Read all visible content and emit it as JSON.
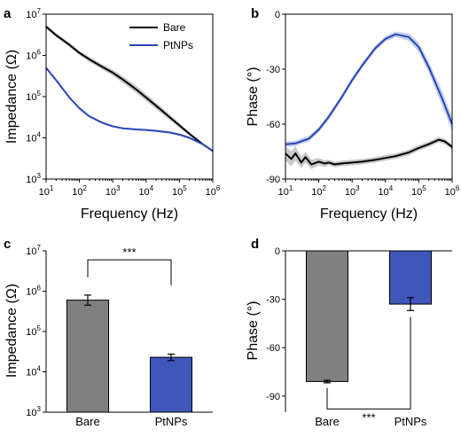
{
  "chart_data": [
    {
      "panel": "a",
      "type": "line",
      "xlabel": "Frequency (Hz)",
      "ylabel": "Impedance (Ω)",
      "xscale": "log",
      "yscale": "log",
      "xlim": [
        10,
        1000000
      ],
      "ylim": [
        1000,
        10000000
      ],
      "xticks": [
        10,
        100,
        1000,
        10000,
        100000,
        1000000
      ],
      "yticks": [
        1000,
        10000,
        100000,
        1000000,
        10000000
      ],
      "legend": "top-right",
      "series": [
        {
          "name": "Bare",
          "color": "#000000",
          "band_color": "#b5b5b5",
          "x": [
            10,
            20,
            50,
            100,
            200,
            500,
            1000,
            2000,
            5000,
            10000,
            20000,
            50000,
            100000,
            200000,
            500000,
            1000000
          ],
          "y": [
            5000000,
            3100000,
            1800000,
            1150000,
            800000,
            520000,
            380000,
            260000,
            150000,
            95000,
            60000,
            32000,
            20000,
            12500,
            7000,
            4800
          ],
          "band": [
            0.12,
            0.12,
            0.12,
            0.13,
            0.14,
            0.16,
            0.18,
            0.2,
            0.22,
            0.22,
            0.2,
            0.17,
            0.14,
            0.1,
            0.06,
            0.04
          ]
        },
        {
          "name": "PtNPs",
          "color": "#2747b8",
          "band_color": "#b3bde6",
          "x": [
            10,
            20,
            50,
            100,
            200,
            500,
            1000,
            2000,
            5000,
            10000,
            20000,
            50000,
            100000,
            200000,
            500000,
            1000000
          ],
          "y": [
            500000,
            250000,
            95000,
            52000,
            33000,
            23000,
            19000,
            17000,
            16000,
            15500,
            14800,
            13500,
            12000,
            10000,
            7000,
            4800
          ],
          "band": [
            0.08,
            0.08,
            0.07,
            0.07,
            0.06,
            0.05,
            0.05,
            0.05,
            0.05,
            0.05,
            0.05,
            0.06,
            0.07,
            0.07,
            0.06,
            0.05
          ]
        }
      ]
    },
    {
      "panel": "b",
      "type": "line",
      "xlabel": "Frequency (Hz)",
      "ylabel": "Phase (°)",
      "xscale": "log",
      "xlim": [
        10,
        1000000
      ],
      "ylim": [
        -90,
        0
      ],
      "xticks": [
        10,
        100,
        1000,
        10000,
        100000,
        1000000
      ],
      "yticks": [
        0,
        -30,
        -60,
        -90
      ],
      "series": [
        {
          "name": "Bare",
          "color": "#000000",
          "band_color": "#b5b5b5",
          "x": [
            10,
            15,
            20,
            30,
            40,
            60,
            100,
            150,
            200,
            300,
            500,
            1000,
            2000,
            5000,
            10000,
            20000,
            50000,
            100000,
            200000,
            400000,
            600000,
            1000000
          ],
          "y": [
            -76,
            -79,
            -76,
            -81,
            -78,
            -82,
            -80.5,
            -81.5,
            -81,
            -82,
            -81.5,
            -81,
            -80.5,
            -79.5,
            -78.5,
            -77.5,
            -75.5,
            -73,
            -71,
            -68.5,
            -69.5,
            -72.5
          ],
          "band": [
            4,
            4,
            4,
            3,
            3,
            2.5,
            2,
            1.8,
            1.5,
            1.5,
            1.5,
            1.5,
            1.5,
            1.5,
            1.5,
            1.5,
            1.5,
            1.5,
            1.5,
            1.5,
            1.5,
            1.5
          ]
        },
        {
          "name": "PtNPs",
          "color": "#2747b8",
          "band_color": "#b3bde6",
          "x": [
            10,
            20,
            50,
            100,
            200,
            500,
            1000,
            2000,
            5000,
            10000,
            20000,
            50000,
            100000,
            200000,
            500000,
            1000000
          ],
          "y": [
            -71,
            -70.5,
            -68,
            -63,
            -56,
            -45,
            -36,
            -28,
            -18.5,
            -13.5,
            -11,
            -12.5,
            -18,
            -29,
            -46,
            -60
          ],
          "band": [
            1.5,
            1.5,
            1.5,
            1.5,
            1.5,
            1.5,
            1.5,
            1.5,
            1.5,
            1.5,
            1.5,
            2,
            2.5,
            3,
            4,
            4
          ]
        }
      ]
    },
    {
      "panel": "c",
      "type": "bar",
      "ylabel": "Impedance (Ω)",
      "yscale": "log",
      "ylim": [
        1000,
        10000000
      ],
      "yticks": [
        1000,
        10000,
        100000,
        1000000,
        10000000
      ],
      "categories": [
        "Bare",
        "PtNPs"
      ],
      "values": [
        600000,
        23000
      ],
      "errors_low": [
        150000,
        4000
      ],
      "errors_high": [
        200000,
        4500
      ],
      "colors": [
        "#808080",
        "#3f57bb"
      ],
      "significance": "***"
    },
    {
      "panel": "d",
      "type": "bar",
      "ylabel": "Phase (°)",
      "ylim": [
        -100,
        0
      ],
      "yticks": [
        0,
        -30,
        -60,
        -90
      ],
      "categories": [
        "Bare",
        "PtNPs"
      ],
      "values": [
        -81,
        -33
      ],
      "errors": [
        0.8,
        4
      ],
      "colors": [
        "#808080",
        "#3f57bb"
      ],
      "significance": "***"
    }
  ],
  "panel_letters": [
    "a",
    "b",
    "c",
    "d"
  ],
  "legend": {
    "items": [
      "Bare",
      "PtNPs"
    ]
  }
}
